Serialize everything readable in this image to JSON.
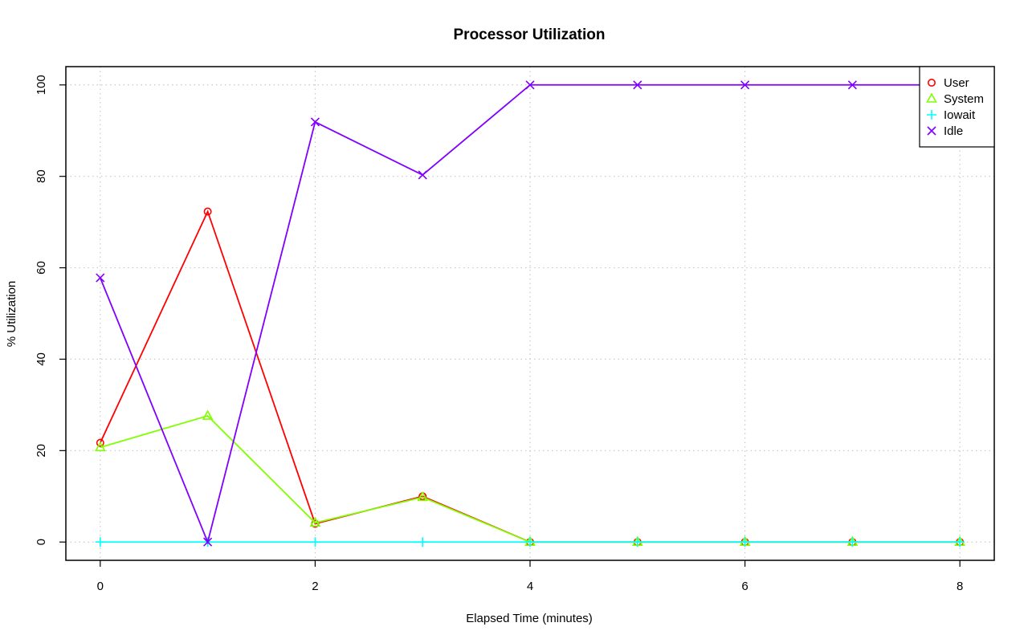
{
  "chart_data": {
    "type": "line",
    "title": "Processor Utilization",
    "xlabel": "Elapsed Time (minutes)",
    "ylabel": "% Utilization",
    "x": [
      0,
      1,
      2,
      3,
      4,
      5,
      6,
      7,
      8
    ],
    "xlim": [
      -0.32,
      8.32
    ],
    "ylim": [
      -4,
      104
    ],
    "xticks": [
      0,
      2,
      4,
      6,
      8
    ],
    "yticks": [
      0,
      20,
      40,
      60,
      80,
      100
    ],
    "grid": true,
    "legend_position": "top-right",
    "series": [
      {
        "name": "User",
        "color": "#ff0000",
        "marker": "circle",
        "values": [
          21.7,
          72.3,
          4.0,
          10.0,
          0,
          0,
          0,
          0,
          0
        ]
      },
      {
        "name": "System",
        "color": "#80ff00",
        "marker": "triangle",
        "values": [
          20.7,
          27.6,
          4.2,
          9.8,
          0,
          0,
          0,
          0,
          0
        ]
      },
      {
        "name": "Iowait",
        "color": "#00ffff",
        "marker": "plus",
        "values": [
          0,
          0,
          0,
          0,
          0,
          0,
          0,
          0,
          0
        ]
      },
      {
        "name": "Idle",
        "color": "#8000ff",
        "marker": "cross",
        "values": [
          57.8,
          0,
          91.9,
          80.3,
          100,
          100,
          100,
          100,
          100
        ]
      }
    ]
  }
}
